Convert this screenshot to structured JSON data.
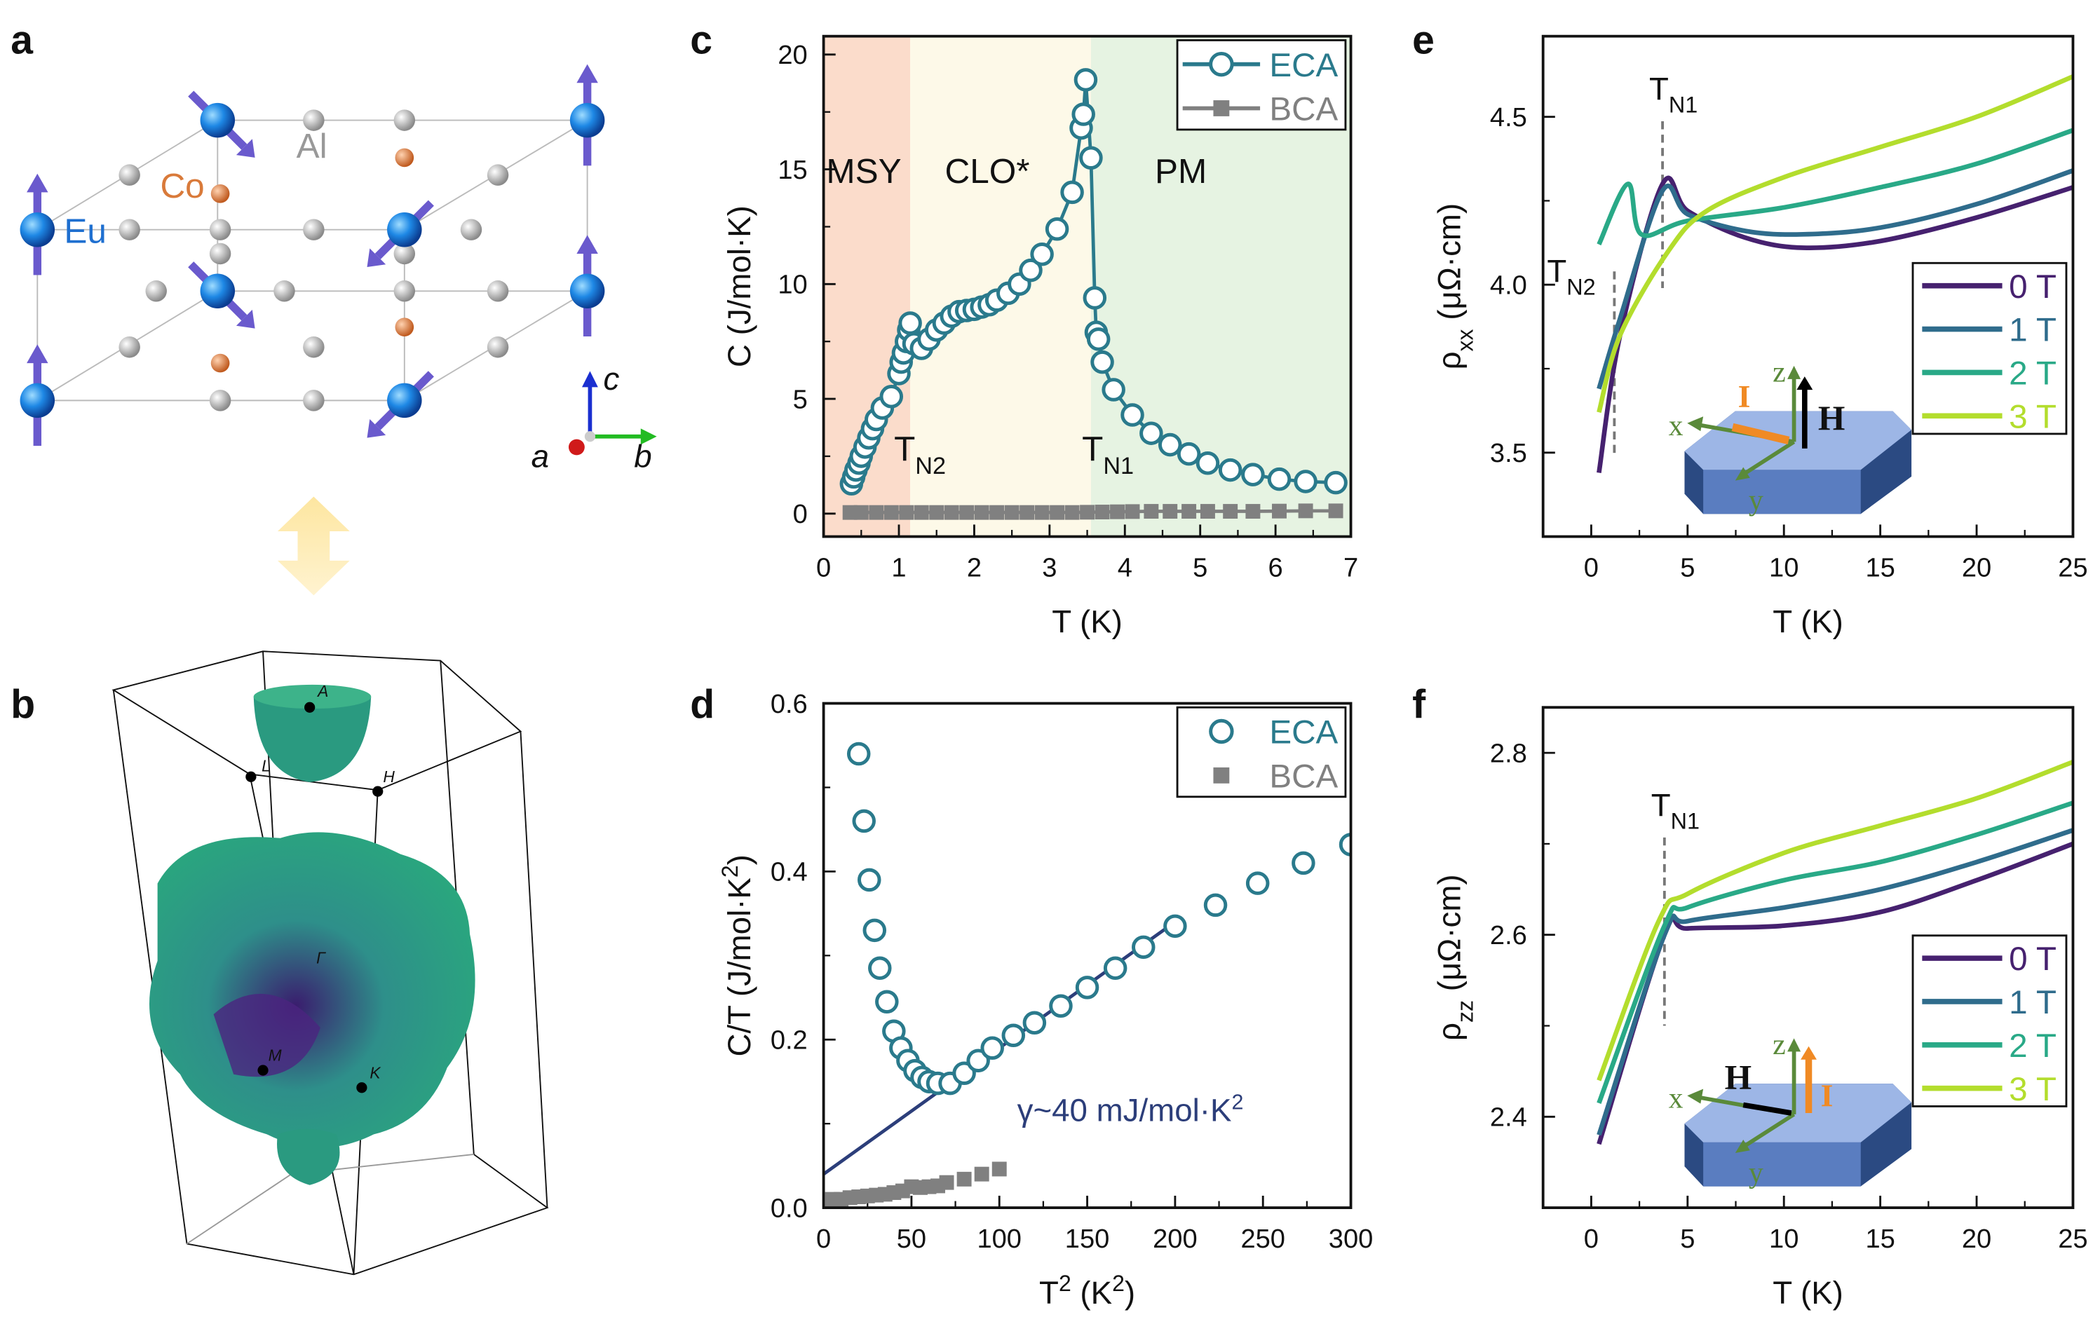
{
  "panels": {
    "a": {
      "label": "a",
      "atoms": {
        "al": "Al",
        "co": "Co",
        "eu": "Eu"
      },
      "axes": {
        "a": "a",
        "b": "b",
        "c": "c"
      }
    },
    "b": {
      "label": "b",
      "points": {
        "A": "A",
        "L": "L",
        "H": "H",
        "G": "Γ",
        "M": "M",
        "K": "K"
      }
    },
    "c": {
      "label": "c"
    },
    "d": {
      "label": "d"
    },
    "e": {
      "label": "e"
    },
    "f": {
      "label": "f"
    }
  },
  "colors": {
    "eca": "#2a7a8c",
    "bca": "#808080",
    "msy": "#fbdccb",
    "clo": "#fdf9e8",
    "pm": "#e6f3e2",
    "field_0": "#46216f",
    "field_1": "#2f6c8c",
    "field_2": "#29a987",
    "field_3": "#b3dd2d",
    "eu": "#1e88e5",
    "co": "#d97a3a",
    "al": "#b0b0b0"
  },
  "chart_data": [
    {
      "id": "c",
      "type": "scatter",
      "xlabel": "T (K)",
      "ylabel": "C (J/mol·K)",
      "xlim": [
        0,
        7
      ],
      "ylim": [
        -1,
        20.8
      ],
      "xticks": [
        0,
        1,
        2,
        3,
        4,
        5,
        6,
        7
      ],
      "yticks": [
        0,
        5,
        10,
        15,
        20
      ],
      "regions": [
        {
          "label": "MSY",
          "from": 0,
          "to": 1.15,
          "color": "#fbdccb"
        },
        {
          "label": "CLO*",
          "from": 1.15,
          "to": 3.55,
          "color": "#fdf9e8"
        },
        {
          "label": "PM",
          "from": 3.55,
          "to": 7,
          "color": "#e6f3e2"
        }
      ],
      "annotations": [
        {
          "main": "T",
          "sub": "N2",
          "x": 0.9,
          "y": 2.2
        },
        {
          "main": "T",
          "sub": "N1",
          "x": 3.2,
          "y": 2.2
        }
      ],
      "legend": {
        "placement": "top-right",
        "entries": [
          "ECA",
          "BCA"
        ]
      },
      "series": [
        {
          "name": "ECA",
          "marker": "open-circle",
          "line": true,
          "x": [
            0.37,
            0.4,
            0.43,
            0.47,
            0.5,
            0.55,
            0.6,
            0.65,
            0.7,
            0.78,
            0.9,
            1.0,
            1.03,
            1.06,
            1.1,
            1.13,
            1.15,
            1.2,
            1.3,
            1.4,
            1.5,
            1.6,
            1.7,
            1.8,
            1.9,
            2.0,
            2.1,
            2.2,
            2.3,
            2.45,
            2.6,
            2.75,
            2.9,
            3.1,
            3.3,
            3.42,
            3.45,
            3.48,
            3.55,
            3.6,
            3.62,
            3.65,
            3.7,
            3.85,
            4.1,
            4.35,
            4.6,
            4.85,
            5.1,
            5.4,
            5.7,
            6.05,
            6.4,
            6.8
          ],
          "y": [
            1.3,
            1.6,
            1.9,
            2.2,
            2.5,
            2.9,
            3.3,
            3.7,
            4.1,
            4.6,
            5.1,
            6.1,
            6.6,
            7.0,
            7.5,
            8.0,
            8.3,
            7.4,
            7.2,
            7.6,
            8.0,
            8.3,
            8.6,
            8.8,
            8.85,
            8.9,
            9.0,
            9.1,
            9.3,
            9.6,
            10.0,
            10.6,
            11.3,
            12.4,
            14.0,
            16.8,
            17.4,
            18.9,
            15.5,
            9.4,
            7.9,
            7.6,
            6.6,
            5.4,
            4.3,
            3.5,
            3.0,
            2.6,
            2.2,
            1.9,
            1.7,
            1.5,
            1.4,
            1.35
          ]
        },
        {
          "name": "BCA",
          "marker": "filled-square",
          "line": true,
          "x": [
            0.35,
            0.5,
            0.7,
            0.9,
            1.1,
            1.3,
            1.5,
            1.7,
            1.9,
            2.1,
            2.3,
            2.5,
            2.7,
            2.9,
            3.1,
            3.3,
            3.5,
            3.7,
            3.9,
            4.1,
            4.35,
            4.6,
            4.85,
            5.1,
            5.4,
            5.7,
            6.05,
            6.4,
            6.8
          ],
          "y": [
            0.05,
            0.05,
            0.05,
            0.05,
            0.05,
            0.05,
            0.05,
            0.05,
            0.05,
            0.05,
            0.05,
            0.05,
            0.05,
            0.05,
            0.05,
            0.05,
            0.06,
            0.07,
            0.08,
            0.09,
            0.1,
            0.1,
            0.1,
            0.1,
            0.1,
            0.1,
            0.11,
            0.12,
            0.12
          ]
        }
      ]
    },
    {
      "id": "d",
      "type": "scatter",
      "xlabel": {
        "main": "T",
        "sup": "2",
        "unit": " (K",
        "unit_sup": "2",
        "close": ")"
      },
      "ylabel": {
        "main": "C/T (J/mol·K",
        "sup": "2",
        "close": ")"
      },
      "xlim": [
        0,
        300
      ],
      "ylim": [
        0,
        0.6
      ],
      "xticks": [
        0,
        50,
        100,
        150,
        200,
        250,
        300
      ],
      "yticks": [
        0.0,
        0.2,
        0.4,
        0.6
      ],
      "ytick_labels": [
        "0.0",
        "0.2",
        "0.4",
        "0.6"
      ],
      "annotation": {
        "main": "γ~40 mJ/mol·K",
        "sup": "2"
      },
      "fit": {
        "x": [
          0,
          200
        ],
        "y": [
          0.04,
          0.34
        ],
        "color": "#2c3e7a"
      },
      "legend": {
        "placement": "top-right",
        "entries": [
          "ECA",
          "BCA"
        ]
      },
      "series": [
        {
          "name": "ECA",
          "marker": "open-circle",
          "x": [
            20,
            23,
            26,
            29,
            32,
            36,
            40,
            44,
            48,
            52,
            56,
            60,
            65,
            72,
            80,
            88,
            96,
            108,
            120,
            135,
            150,
            166,
            182,
            200,
            223,
            247,
            273,
            300
          ],
          "y": [
            0.54,
            0.46,
            0.39,
            0.33,
            0.285,
            0.245,
            0.21,
            0.19,
            0.175,
            0.163,
            0.155,
            0.15,
            0.148,
            0.148,
            0.16,
            0.175,
            0.19,
            0.205,
            0.22,
            0.24,
            0.262,
            0.285,
            0.31,
            0.335,
            0.36,
            0.386,
            0.41,
            0.432
          ]
        },
        {
          "name": "BCA",
          "marker": "filled-square",
          "x": [
            5,
            10,
            15,
            20,
            25,
            30,
            35,
            40,
            45,
            50,
            55,
            60,
            65,
            70,
            80,
            90,
            100
          ],
          "y": [
            0.01,
            0.01,
            0.012,
            0.013,
            0.014,
            0.015,
            0.016,
            0.018,
            0.02,
            0.025,
            0.024,
            0.025,
            0.026,
            0.03,
            0.034,
            0.04,
            0.046
          ]
        }
      ]
    },
    {
      "id": "e",
      "type": "line",
      "xlabel": "T (K)",
      "ylabel": {
        "main": "ρ",
        "sub": "xx",
        "unit": " (μΩ·cm)"
      },
      "xlim": [
        -2.5,
        25
      ],
      "ylim": [
        3.25,
        4.74
      ],
      "xticks": [
        0,
        5,
        10,
        15,
        20,
        25
      ],
      "yticks": [
        3.5,
        4.0,
        4.5
      ],
      "ytick_labels": [
        "3.5",
        "4.0",
        "4.5"
      ],
      "markers": [
        {
          "main": "T",
          "sub": "N1",
          "x": 3.7
        },
        {
          "main": "T",
          "sub": "N2",
          "x": 1.2
        }
      ],
      "inset": {
        "current": "I",
        "field": "H",
        "axes": [
          "x",
          "y",
          "z"
        ],
        "current_along": "x",
        "field_along": "z"
      },
      "legend": {
        "placement": "right",
        "entries": [
          "0 T",
          "1 T",
          "2 T",
          "3 T"
        ]
      },
      "series": [
        {
          "name": "0 T",
          "x": [
            0.4,
            1.5,
            3.7,
            5,
            8,
            11,
            15,
            20,
            25
          ],
          "y": [
            3.44,
            3.85,
            4.3,
            4.22,
            4.14,
            4.11,
            4.13,
            4.2,
            4.29
          ]
        },
        {
          "name": "1 T",
          "x": [
            0.4,
            1.5,
            3.7,
            5,
            8,
            11,
            15,
            20,
            25
          ],
          "y": [
            3.69,
            3.9,
            4.28,
            4.21,
            4.16,
            4.15,
            4.17,
            4.24,
            4.34
          ]
        },
        {
          "name": "2 T",
          "x": [
            0.4,
            1.9,
            2.6,
            5,
            10,
            15,
            20,
            25
          ],
          "y": [
            4.12,
            4.3,
            4.15,
            4.19,
            4.23,
            4.29,
            4.36,
            4.46
          ]
        },
        {
          "name": "3 T",
          "x": [
            0.4,
            1.5,
            4,
            6,
            10,
            15,
            20,
            25
          ],
          "y": [
            3.62,
            3.85,
            4.1,
            4.22,
            4.32,
            4.41,
            4.5,
            4.62
          ]
        }
      ]
    },
    {
      "id": "f",
      "type": "line",
      "xlabel": "T (K)",
      "ylabel": {
        "main": "ρ",
        "sub": "zz",
        "unit": " (μΩ·cm)"
      },
      "xlim": [
        -2.5,
        25
      ],
      "ylim": [
        2.3,
        2.85
      ],
      "xticks": [
        0,
        5,
        10,
        15,
        20,
        25
      ],
      "yticks": [
        2.4,
        2.6,
        2.8
      ],
      "ytick_labels": [
        "2.4",
        "2.6",
        "2.8"
      ],
      "markers": [
        {
          "main": "T",
          "sub": "N1",
          "x": 3.8
        }
      ],
      "inset": {
        "current": "I",
        "field": "H",
        "axes": [
          "x",
          "y",
          "z"
        ],
        "current_along": "z",
        "field_along": "x"
      },
      "legend": {
        "placement": "right",
        "entries": [
          "0 T",
          "1 T",
          "2 T",
          "3 T"
        ]
      },
      "series": [
        {
          "name": "0 T",
          "x": [
            0.4,
            3.8,
            5,
            10,
            15,
            20,
            25
          ],
          "y": [
            2.37,
            2.6,
            2.607,
            2.61,
            2.625,
            2.66,
            2.7
          ]
        },
        {
          "name": "1 T",
          "x": [
            0.4,
            3.8,
            5,
            10,
            15,
            20,
            25
          ],
          "y": [
            2.38,
            2.6,
            2.615,
            2.63,
            2.65,
            2.68,
            2.715
          ]
        },
        {
          "name": "2 T",
          "x": [
            0.4,
            3.8,
            5,
            10,
            15,
            20,
            25
          ],
          "y": [
            2.415,
            2.61,
            2.63,
            2.66,
            2.68,
            2.71,
            2.745
          ]
        },
        {
          "name": "3 T",
          "x": [
            0.4,
            3.5,
            5,
            10,
            15,
            20,
            25
          ],
          "y": [
            2.44,
            2.615,
            2.645,
            2.69,
            2.72,
            2.75,
            2.79
          ]
        }
      ]
    }
  ]
}
